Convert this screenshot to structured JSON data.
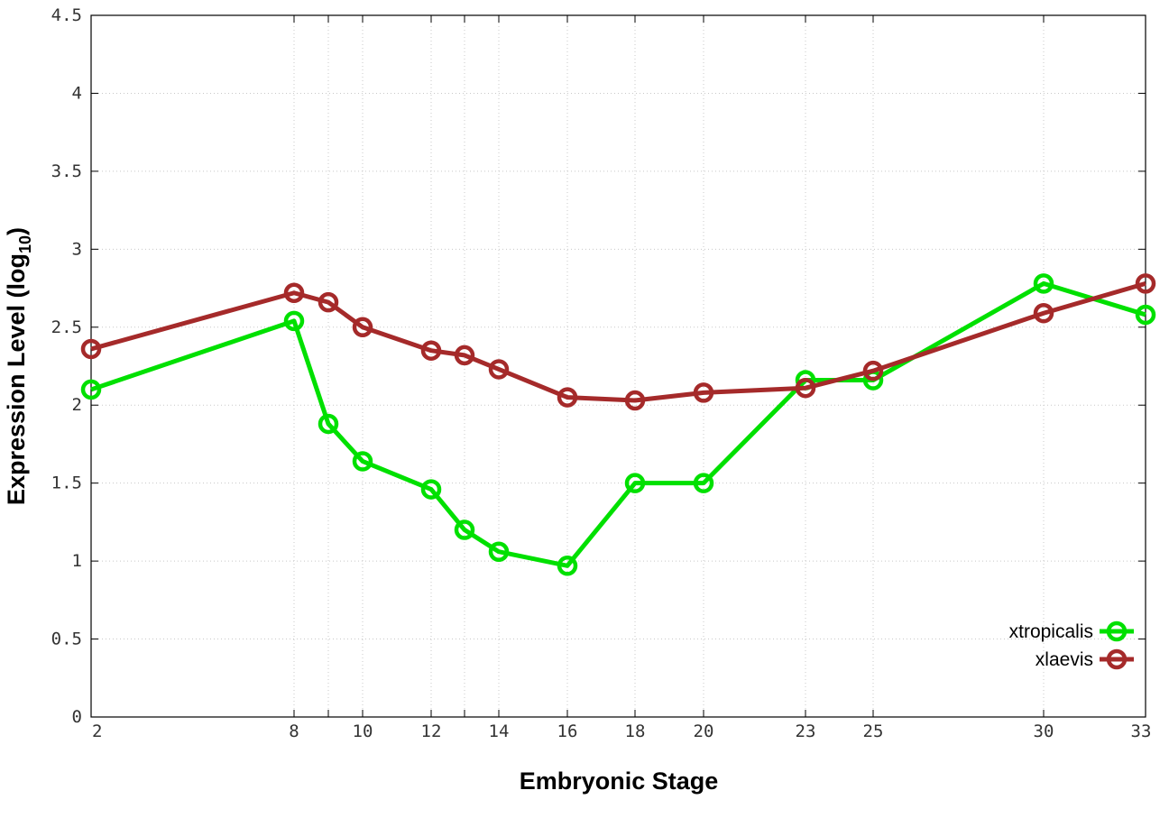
{
  "chart_data": {
    "type": "line",
    "title": "",
    "xlabel": "Embryonic Stage",
    "ylabel_main": "Expression Level (log",
    "ylabel_sub": "10",
    "ylabel_close": ")",
    "x": [
      "2",
      "8",
      "9",
      "10",
      "12",
      "13",
      "14",
      "16",
      "18",
      "20",
      "23",
      "25",
      "30",
      "33"
    ],
    "x_tick_labels": [
      "2",
      "8",
      "10",
      "12",
      "14",
      "16",
      "18",
      "20",
      "23",
      "25",
      "30",
      "33"
    ],
    "ylim": [
      0,
      4.5
    ],
    "y_ticks": [
      0,
      0.5,
      1,
      1.5,
      2,
      2.5,
      3,
      3.5,
      4,
      4.5
    ],
    "y_tick_labels": [
      "0",
      "0.5",
      "1",
      "1.5",
      "2",
      "2.5",
      "3",
      "3.5",
      "4",
      "4.5"
    ],
    "grid": true,
    "legend_position": "bottom-right",
    "series": [
      {
        "name": "xtropicalis",
        "color": "#00e000",
        "x": [
          2,
          8,
          9,
          10,
          12,
          13,
          14,
          16,
          18,
          20,
          23,
          25,
          30,
          33
        ],
        "values": [
          2.1,
          2.54,
          1.88,
          1.64,
          1.46,
          1.2,
          1.06,
          0.97,
          1.5,
          1.5,
          2.16,
          2.16,
          2.78,
          2.58
        ]
      },
      {
        "name": "xlaevis",
        "color": "#a52a2a",
        "x": [
          2,
          8,
          9,
          10,
          12,
          13,
          14,
          16,
          18,
          20,
          23,
          25,
          30,
          33
        ],
        "values": [
          2.36,
          2.72,
          2.66,
          2.5,
          2.35,
          2.32,
          2.23,
          2.05,
          2.03,
          2.08,
          2.11,
          2.22,
          2.59,
          2.78
        ]
      }
    ]
  }
}
